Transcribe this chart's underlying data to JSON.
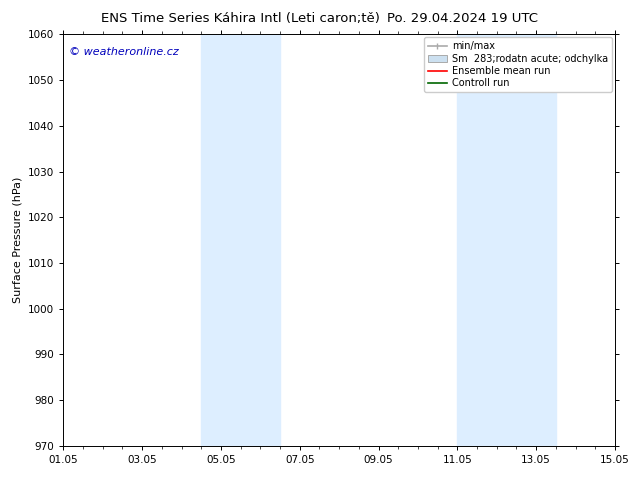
{
  "title_left": "ENS Time Series Káhira Intl (Leti caron;tě)",
  "title_right": "Po. 29.04.2024 19 UTC",
  "ylabel": "Surface Pressure (hPa)",
  "ylim": [
    970,
    1060
  ],
  "yticks": [
    970,
    980,
    990,
    1000,
    1010,
    1020,
    1030,
    1040,
    1050,
    1060
  ],
  "xlim": [
    0,
    14
  ],
  "xtick_labels": [
    "01.05",
    "03.05",
    "05.05",
    "07.05",
    "09.05",
    "11.05",
    "13.05",
    "15.05"
  ],
  "xtick_positions": [
    0,
    2,
    4,
    6,
    8,
    10,
    12,
    14
  ],
  "shaded_bands": [
    {
      "x_start": 3.5,
      "x_end": 5.5,
      "color": "#ddeeff"
    },
    {
      "x_start": 10.0,
      "x_end": 12.5,
      "color": "#ddeeff"
    }
  ],
  "watermark_text": "© weatheronline.cz",
  "watermark_color": "#0000bb",
  "legend_labels": [
    "min/max",
    "Sm  283;rodatn acute; odchylka",
    "Ensemble mean run",
    "Controll run"
  ],
  "legend_colors": [
    "#aaaaaa",
    "#cce0f0",
    "#ff0000",
    "#006600"
  ],
  "background_color": "#ffffff",
  "plot_bg_color": "#ffffff",
  "title_fontsize": 9.5,
  "axis_label_fontsize": 8,
  "tick_fontsize": 7.5,
  "legend_fontsize": 7,
  "watermark_fontsize": 8
}
